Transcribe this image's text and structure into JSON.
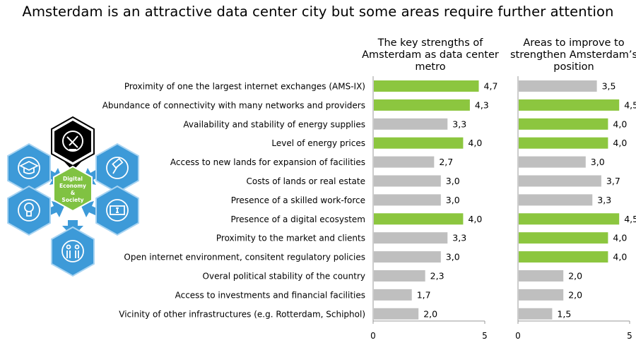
{
  "title": "Amsterdam is an attractive data center city but some areas require further attention",
  "colors": {
    "highlight": "#8cc63f",
    "base": "#bfbfbf",
    "hex_blue": "#3d9ad8",
    "hex_blue_border": "#a8d4f2",
    "hex_center": "#80c242",
    "hex_dark": "#000000"
  },
  "illustration": {
    "center_label_lines": [
      "Digital",
      "Economy",
      "&",
      "Society"
    ],
    "icons": [
      "satellite-dish-icon",
      "graduation-cap-icon",
      "gavel-icon",
      "lightbulb-icon",
      "money-icon",
      "people-icon"
    ]
  },
  "chart_data": [
    {
      "type": "bar",
      "orientation": "horizontal",
      "title": "The key strengths of Amsterdam as data center metro",
      "title_lines": [
        "The key strengths of",
        "Amsterdam as data center",
        "metro"
      ],
      "categories": [
        "Proximity of one the largest internet exchanges (AMS-IX)",
        "Abundance of connectivity with many  networks and providers",
        "Availability and stability of energy supplies",
        "Level of energy prices",
        "Access to new lands for expansion of facilities",
        "Costs of lands or real estate",
        "Presence of a skilled work-force",
        "Presence of a digital ecosystem",
        "Proximity to the market and clients",
        "Open internet environment, consitent regulatory policies",
        "Overal political stability of the country",
        "Access to investments and financial facilities",
        "Vicinity of other infrastructures (e.g. Rotterdam, Schiphol)"
      ],
      "values": [
        4.7,
        4.3,
        3.3,
        4.0,
        2.7,
        3.0,
        3.0,
        4.0,
        3.3,
        3.0,
        2.3,
        1.7,
        2.0
      ],
      "labels": [
        "4,7",
        "4,3",
        "3,3",
        "4,0",
        "2,7",
        "3,0",
        "3,0",
        "4,0",
        "3,3",
        "3,0",
        "2,3",
        "1,7",
        "2,0"
      ],
      "highlighted": [
        true,
        true,
        false,
        true,
        false,
        false,
        false,
        true,
        false,
        false,
        false,
        false,
        false
      ],
      "xlim": [
        0,
        5
      ],
      "ticks": [
        "0",
        "5"
      ]
    },
    {
      "type": "bar",
      "orientation": "horizontal",
      "title": "Areas to improve to strengthen Amsterdam’s position",
      "title_lines": [
        "Areas to improve to",
        "strengthen Amsterdam’s",
        "position"
      ],
      "values": [
        3.5,
        4.5,
        4.0,
        4.0,
        3.0,
        3.7,
        3.3,
        4.5,
        4.0,
        4.0,
        2.0,
        2.0,
        1.5
      ],
      "labels": [
        "3,5",
        "4,5",
        "4,0",
        "4,0",
        "3,0",
        "3,7",
        "3,3",
        "4,5",
        "4,0",
        "4,0",
        "2,0",
        "2,0",
        "1,5"
      ],
      "highlighted": [
        false,
        true,
        true,
        true,
        false,
        false,
        false,
        true,
        true,
        true,
        false,
        false,
        false
      ],
      "xlim": [
        0,
        5
      ],
      "ticks": [
        "0",
        "5"
      ]
    }
  ]
}
